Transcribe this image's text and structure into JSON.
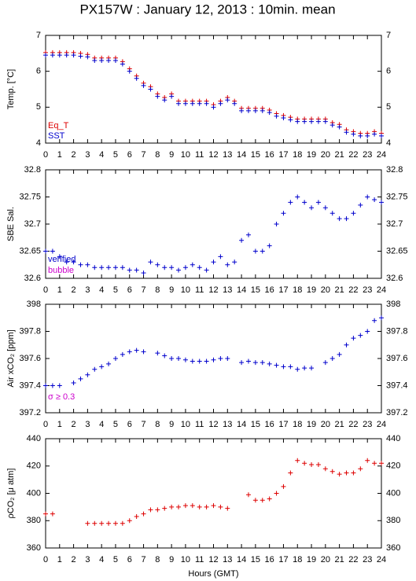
{
  "title": "PX157W : January 12, 2013 : 10min. mean",
  "chart_data": [
    {
      "type": "scatter",
      "ylabel": "Temp. [°C]",
      "ylim": [
        4,
        7
      ],
      "yticks": [
        4,
        5,
        6,
        7
      ],
      "xlim": [
        0,
        24
      ],
      "xticks": [
        0,
        1,
        2,
        3,
        4,
        5,
        6,
        7,
        8,
        9,
        10,
        11,
        12,
        13,
        14,
        15,
        16,
        17,
        18,
        19,
        20,
        21,
        22,
        23,
        24
      ],
      "x": [
        0,
        0.5,
        1,
        1.5,
        2,
        2.5,
        3,
        3.5,
        4,
        4.5,
        5,
        5.5,
        6,
        6.5,
        7,
        7.5,
        8,
        8.5,
        9,
        9.5,
        10,
        10.5,
        11,
        11.5,
        12,
        12.5,
        13,
        13.5,
        14,
        14.5,
        15,
        15.5,
        16,
        16.5,
        17,
        17.5,
        18,
        18.5,
        19,
        19.5,
        20,
        20.5,
        21,
        21.5,
        22,
        22.5,
        23,
        23.5,
        24
      ],
      "series": [
        {
          "name": "Eq_T",
          "color": "#dd0000",
          "values": [
            6.52,
            6.52,
            6.52,
            6.52,
            6.52,
            6.5,
            6.47,
            6.37,
            6.37,
            6.37,
            6.37,
            6.27,
            6.07,
            5.87,
            5.67,
            5.57,
            5.37,
            5.27,
            5.37,
            5.17,
            5.17,
            5.17,
            5.17,
            5.17,
            5.07,
            5.17,
            5.27,
            5.17,
            4.97,
            4.97,
            4.97,
            4.97,
            4.92,
            4.82,
            4.77,
            4.72,
            4.67,
            4.67,
            4.67,
            4.67,
            4.67,
            4.57,
            4.52,
            4.37,
            4.32,
            4.27,
            4.27,
            4.32,
            4.27
          ]
        },
        {
          "name": "SST",
          "color": "#0000cc",
          "values": [
            6.45,
            6.45,
            6.45,
            6.45,
            6.45,
            6.42,
            6.4,
            6.3,
            6.3,
            6.3,
            6.3,
            6.2,
            6.0,
            5.8,
            5.6,
            5.5,
            5.3,
            5.2,
            5.3,
            5.1,
            5.1,
            5.1,
            5.1,
            5.1,
            5.0,
            5.1,
            5.2,
            5.1,
            4.9,
            4.9,
            4.9,
            4.9,
            4.85,
            4.75,
            4.7,
            4.65,
            4.6,
            4.6,
            4.6,
            4.6,
            4.6,
            4.5,
            4.45,
            4.3,
            4.25,
            4.2,
            4.2,
            4.25,
            4.2
          ]
        }
      ]
    },
    {
      "type": "scatter",
      "ylabel": "SBE Sal.",
      "ylim": [
        32.6,
        32.8
      ],
      "yticks": [
        32.6,
        32.65,
        32.7,
        32.75,
        32.8
      ],
      "xlim": [
        0,
        24
      ],
      "xticks": [
        0,
        1,
        2,
        3,
        4,
        5,
        6,
        7,
        8,
        9,
        10,
        11,
        12,
        13,
        14,
        15,
        16,
        17,
        18,
        19,
        20,
        21,
        22,
        23,
        24
      ],
      "x": [
        0,
        0.5,
        1,
        1.5,
        2,
        2.5,
        3,
        3.5,
        4,
        4.5,
        5,
        5.5,
        6,
        6.5,
        7,
        7.5,
        8,
        8.5,
        9,
        9.5,
        10,
        10.5,
        11,
        11.5,
        12,
        12.5,
        13,
        13.5,
        14,
        14.5,
        15,
        15.5,
        16,
        16.5,
        17,
        17.5,
        18,
        18.5,
        19,
        19.5,
        20,
        20.5,
        21,
        21.5,
        22,
        22.5,
        23,
        23.5,
        24
      ],
      "series": [
        {
          "name": "verified",
          "color": "#0000cc",
          "values": [
            32.65,
            32.65,
            32.64,
            32.63,
            32.63,
            32.625,
            32.625,
            32.62,
            32.62,
            32.62,
            32.62,
            32.62,
            32.615,
            32.615,
            32.61,
            32.63,
            32.625,
            32.62,
            32.62,
            32.615,
            32.62,
            32.625,
            32.62,
            32.615,
            32.63,
            32.64,
            32.625,
            32.63,
            32.67,
            32.68,
            32.65,
            32.65,
            32.66,
            32.7,
            32.72,
            32.74,
            32.75,
            32.74,
            32.73,
            32.74,
            32.73,
            32.72,
            32.71,
            32.71,
            32.72,
            32.735,
            32.75,
            32.745,
            32.74
          ]
        },
        {
          "name": "bubble",
          "color": "#cc00cc",
          "values": [
            null,
            null,
            null,
            null,
            null,
            null,
            null,
            null,
            null,
            null,
            null,
            null,
            null,
            null,
            null,
            null,
            null,
            null,
            null,
            null,
            null,
            null,
            null,
            null,
            null,
            null,
            null,
            null,
            null,
            null,
            null,
            null,
            null,
            null,
            null,
            null,
            null,
            null,
            null,
            null,
            null,
            null,
            null,
            null,
            null,
            null,
            null,
            null,
            null
          ]
        }
      ]
    },
    {
      "type": "scatter",
      "ylabel": "Air xCO₂ [ppm]",
      "annotation": "σ ≥ 0.3",
      "ylim": [
        397.2,
        398
      ],
      "yticks": [
        397.2,
        397.4,
        397.6,
        397.8,
        398
      ],
      "xlim": [
        0,
        24
      ],
      "xticks": [
        0,
        1,
        2,
        3,
        4,
        5,
        6,
        7,
        8,
        9,
        10,
        11,
        12,
        13,
        14,
        15,
        16,
        17,
        18,
        19,
        20,
        21,
        22,
        23,
        24
      ],
      "x": [
        0,
        0.5,
        1,
        1.5,
        2,
        2.5,
        3,
        3.5,
        4,
        4.5,
        5,
        5.5,
        6,
        6.5,
        7,
        7.5,
        8,
        8.5,
        9,
        9.5,
        10,
        10.5,
        11,
        11.5,
        12,
        12.5,
        13,
        13.5,
        14,
        14.5,
        15,
        15.5,
        16,
        16.5,
        17,
        17.5,
        18,
        18.5,
        19,
        19.5,
        20,
        20.5,
        21,
        21.5,
        22,
        22.5,
        23,
        23.5,
        24
      ],
      "series": [
        {
          "color": "#0000cc",
          "values": [
            397.4,
            397.4,
            397.4,
            null,
            397.42,
            397.45,
            397.48,
            397.52,
            397.54,
            397.56,
            397.6,
            397.63,
            397.65,
            397.66,
            397.65,
            null,
            397.64,
            397.62,
            397.6,
            397.6,
            397.59,
            397.58,
            397.58,
            397.58,
            397.59,
            397.6,
            397.6,
            null,
            397.57,
            397.58,
            397.57,
            397.57,
            397.56,
            397.55,
            397.54,
            397.54,
            397.52,
            397.53,
            397.53,
            null,
            397.57,
            397.6,
            397.63,
            397.7,
            397.75,
            397.77,
            397.8,
            397.88,
            397.9
          ]
        }
      ]
    },
    {
      "type": "scatter",
      "ylabel": "ρCO₂ [μ atm]",
      "xlabel": "Hours (GMT)",
      "ylim": [
        360,
        440
      ],
      "yticks": [
        360,
        380,
        400,
        420,
        440
      ],
      "xlim": [
        0,
        24
      ],
      "xticks": [
        0,
        1,
        2,
        3,
        4,
        5,
        6,
        7,
        8,
        9,
        10,
        11,
        12,
        13,
        14,
        15,
        16,
        17,
        18,
        19,
        20,
        21,
        22,
        23,
        24
      ],
      "x": [
        0,
        0.5,
        1,
        1.5,
        2,
        2.5,
        3,
        3.5,
        4,
        4.5,
        5,
        5.5,
        6,
        6.5,
        7,
        7.5,
        8,
        8.5,
        9,
        9.5,
        10,
        10.5,
        11,
        11.5,
        12,
        12.5,
        13,
        13.5,
        14,
        14.5,
        15,
        15.5,
        16,
        16.5,
        17,
        17.5,
        18,
        18.5,
        19,
        19.5,
        20,
        20.5,
        21,
        21.5,
        22,
        22.5,
        23,
        23.5,
        24
      ],
      "series": [
        {
          "color": "#dd0000",
          "values": [
            385,
            385,
            null,
            null,
            null,
            null,
            378,
            378,
            378,
            378,
            378,
            378,
            380,
            383,
            385,
            388,
            388,
            389,
            390,
            390,
            391,
            391,
            390,
            390,
            391,
            390,
            389,
            null,
            null,
            399,
            395,
            395,
            396,
            400,
            405,
            415,
            424,
            422,
            421,
            421,
            418,
            416,
            414,
            415,
            415,
            418,
            424,
            422,
            422
          ]
        }
      ]
    }
  ]
}
